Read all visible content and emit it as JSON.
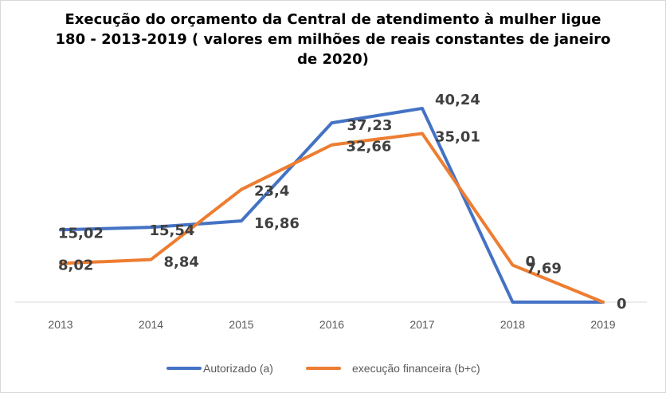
{
  "chart_data": {
    "type": "line",
    "title_lines": [
      "Execução do orçamento da Central de atendimento  à mulher ligue",
      "180  -  2013-2019 ( valores em milhões de reais constantes de janeiro",
      "de 2020)"
    ],
    "categories": [
      "2013",
      "2014",
      "2015",
      "2016",
      "2017",
      "2018",
      "2019"
    ],
    "series": [
      {
        "name": "Autorizado (a)",
        "color": "#4472c4",
        "values": [
          15.02,
          15.54,
          16.86,
          37.23,
          40.24,
          0,
          0
        ],
        "labels": [
          "15,02",
          "15,54",
          "16,86",
          "37,23",
          "40,24",
          "0",
          "0"
        ]
      },
      {
        "name": "execução financeira (b+c)",
        "color": "#ed7d31",
        "values": [
          8.02,
          8.84,
          23.4,
          32.66,
          35.01,
          7.69,
          0
        ],
        "labels": [
          "8,02",
          "8,84",
          "23,4",
          "32,66",
          "35,01",
          "7,69",
          ""
        ]
      }
    ],
    "ylim": [
      0,
      42
    ],
    "grid": false,
    "axis_color": "#d9d9d9",
    "legend_position": "bottom"
  }
}
